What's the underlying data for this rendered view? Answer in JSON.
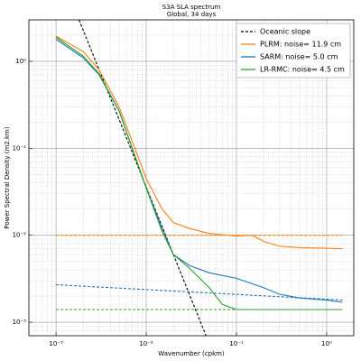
{
  "chart_data": {
    "type": "line",
    "title": "S3A SLA spectrum",
    "subtitle": "Global, 34 days",
    "x_label": "Wavenumber (cpkm)",
    "y_label": "Power Spectral Density (m2.km)",
    "log_x": true,
    "log_y": true,
    "grid": true,
    "legend": "upper right",
    "xlim": [
      0.0005,
      2
    ],
    "ylim": [
      0.0007,
      3
    ],
    "xticks": [
      {
        "value": 0.001,
        "label": "10⁻³"
      },
      {
        "value": 0.01,
        "label": "10⁻²"
      },
      {
        "value": 0.1,
        "label": "10⁻¹"
      },
      {
        "value": 1,
        "label": "10⁰"
      }
    ],
    "yticks": [
      {
        "value": 0.001,
        "label": "10⁻³"
      },
      {
        "value": 0.01,
        "label": "10⁻²"
      },
      {
        "value": 0.1,
        "label": "10⁻¹"
      },
      {
        "value": 1,
        "label": "10⁰"
      }
    ],
    "xminorticks": [
      0.0005,
      0.0006,
      0.0007,
      0.0008,
      0.0009,
      0.002,
      0.003,
      0.004,
      0.005,
      0.006,
      0.007,
      0.008,
      0.009,
      0.02,
      0.03,
      0.04,
      0.05,
      0.06,
      0.07,
      0.08,
      0.09,
      0.2,
      0.3,
      0.4,
      0.5,
      0.6,
      0.7,
      0.8,
      0.9,
      2
    ],
    "yminorticks": [
      0.0008,
      0.0009,
      0.002,
      0.003,
      0.004,
      0.005,
      0.006,
      0.007,
      0.008,
      0.009,
      0.02,
      0.03,
      0.04,
      0.05,
      0.06,
      0.07,
      0.08,
      0.09,
      0.2,
      0.3,
      0.4,
      0.5,
      0.6,
      0.7,
      0.8,
      0.9,
      2,
      3
    ],
    "series": [
      {
        "name": "Oceanic slope",
        "color": "#000000",
        "dash": true,
        "x": [
          0.0018,
          0.046
        ],
        "values": [
          3,
          0.0007
        ]
      },
      {
        "name": "PLRM: noise= 11.9 cm",
        "color": "#ff7f0e",
        "x": [
          0.001,
          0.002,
          0.003,
          0.005,
          0.007,
          0.01,
          0.015,
          0.02,
          0.03,
          0.05,
          0.1,
          0.15,
          0.2,
          0.3,
          0.5,
          1,
          1.5
        ],
        "values": [
          1.95,
          1.3,
          0.8,
          0.3,
          0.12,
          0.045,
          0.02,
          0.014,
          0.012,
          0.0105,
          0.0098,
          0.01,
          0.0085,
          0.0075,
          0.0072,
          0.0071,
          0.007
        ]
      },
      {
        "name": "SARM: noise= 5.0 cm",
        "color": "#1f77b4",
        "x": [
          0.001,
          0.002,
          0.003,
          0.005,
          0.007,
          0.01,
          0.015,
          0.02,
          0.03,
          0.05,
          0.1,
          0.2,
          0.3,
          0.5,
          1,
          1.5
        ],
        "values": [
          1.8,
          1.1,
          0.7,
          0.27,
          0.1,
          0.035,
          0.012,
          0.006,
          0.0045,
          0.0037,
          0.0032,
          0.0025,
          0.0021,
          0.0019,
          0.0018,
          0.0017
        ]
      },
      {
        "name": "LR-RMC: noise= 4.5 cm",
        "color": "#2ca02c",
        "x": [
          0.001,
          0.002,
          0.003,
          0.005,
          0.007,
          0.01,
          0.015,
          0.02,
          0.03,
          0.05,
          0.07,
          0.1,
          0.3,
          1,
          1.5
        ],
        "values": [
          1.9,
          1.15,
          0.72,
          0.27,
          0.1,
          0.035,
          0.011,
          0.006,
          0.0042,
          0.0025,
          0.0016,
          0.0014,
          0.0014,
          0.0014,
          0.0014
        ]
      }
    ],
    "reference_lines": [
      {
        "color": "#ff7f0e",
        "x": [
          0.001,
          1.5
        ],
        "values": [
          0.01,
          0.01
        ]
      },
      {
        "color": "#1f77b4",
        "x": [
          0.001,
          1.5
        ],
        "values": [
          0.0027,
          0.0018
        ]
      },
      {
        "color": "#2ca02c",
        "x": [
          0.001,
          1.5
        ],
        "values": [
          0.0014,
          0.0014
        ]
      }
    ]
  }
}
